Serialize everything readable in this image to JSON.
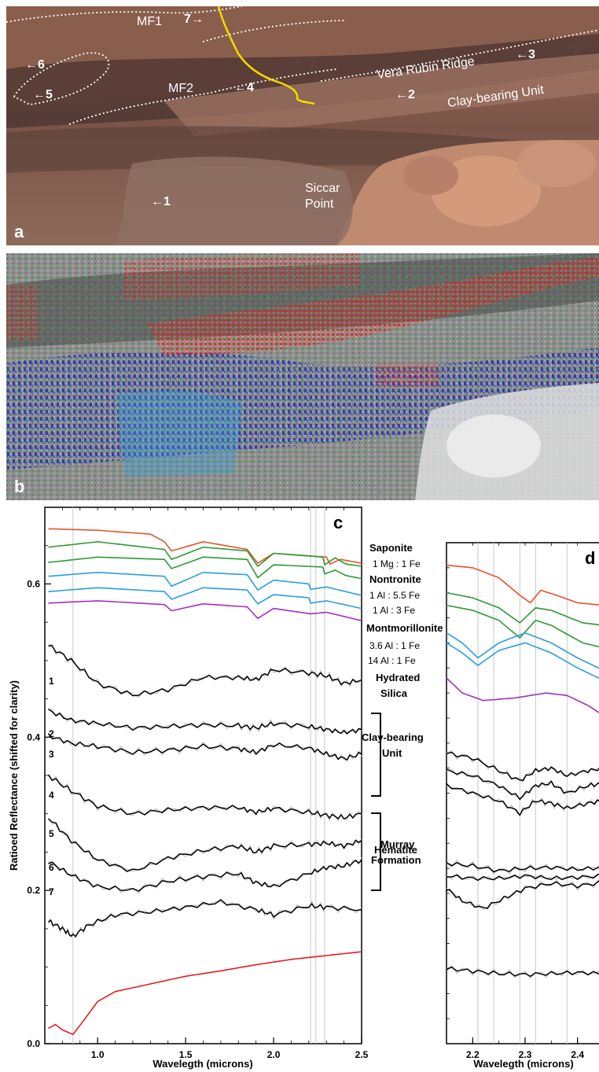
{
  "panel_a": {
    "letter": "a",
    "features": {
      "mf1": "MF1",
      "mf2": "MF2",
      "vera_rubin": "Vera Rubin Ridge",
      "clay_unit": "Clay-bearing Unit",
      "siccar_1": "Siccar",
      "siccar_2": "Point"
    },
    "markers": {
      "m1": "←1",
      "m2": "←2",
      "m3": "←3",
      "m4": "←4",
      "m5": "←5",
      "m6": "←6",
      "m7": "7→"
    }
  },
  "panel_b": {
    "letter": "b"
  },
  "colors": {
    "saponite": "#e8532a",
    "nontronite": "#2e9a35",
    "montmorillonite": "#2a9ee0",
    "silica": "#a030c8",
    "hematite": "#e02020",
    "measured": "#000000",
    "raw": "#b8b8b8",
    "ref_line": "#c8c8c8"
  },
  "chart_data": [
    {
      "type": "line",
      "panel": "c",
      "xlabel": "Wavelegth (microns)",
      "ylabel": "Ratioed Reflectance (shifted for clarity)",
      "xlim": [
        0.7,
        2.5
      ],
      "ylim": [
        0.0,
        0.7
      ],
      "xticks": [
        "1.0",
        "1.5",
        "2.0",
        "2.5"
      ],
      "yticks": [
        "0.0",
        "0.2",
        "0.4",
        "0.6"
      ],
      "reference_lines_um": [
        0.86,
        2.21,
        2.24,
        2.29
      ],
      "mineral_labels": {
        "saponite": "Saponite",
        "saponite_ratio": "1 Mg : 1 Fe",
        "nontronite": "Nontronite",
        "nontronite_ratio_1": "1 Al : 5.5 Fe",
        "nontronite_ratio_2": "1 Al : 3 Fe",
        "montmorillonite": "Montmorillonite",
        "montmorillonite_ratio_1": "3.6 Al : 1 Fe",
        "montmorillonite_ratio_2": "14 Al : 1 Fe",
        "silica_1": "Hydrated",
        "silica_2": "Silica",
        "hematite": "Hematite"
      },
      "groups": {
        "clay_1": "Clay-bearing",
        "clay_2": "Unit",
        "murray_1": "Murray",
        "murray_2": "Formation"
      },
      "spectrum_numbers": [
        "1",
        "2",
        "3",
        "4",
        "5",
        "6",
        "7"
      ],
      "series": [
        {
          "name": "Saponite",
          "color": "saponite",
          "x": [
            0.72,
            1.0,
            1.3,
            1.38,
            1.42,
            1.6,
            1.85,
            1.91,
            2.0,
            2.3,
            2.32,
            2.38,
            2.5
          ],
          "y": [
            0.672,
            0.67,
            0.665,
            0.655,
            0.643,
            0.655,
            0.645,
            0.627,
            0.64,
            0.635,
            0.626,
            0.632,
            0.627
          ]
        },
        {
          "name": "Nontronite 1 Al : 5.5 Fe",
          "color": "nontronite",
          "x": [
            0.72,
            1.0,
            1.38,
            1.42,
            1.6,
            1.85,
            1.91,
            2.0,
            2.28,
            2.29,
            2.35,
            2.41,
            2.5
          ],
          "y": [
            0.648,
            0.655,
            0.645,
            0.632,
            0.648,
            0.643,
            0.623,
            0.64,
            0.635,
            0.625,
            0.634,
            0.626,
            0.623
          ]
        },
        {
          "name": "Nontronite 1 Al : 3 Fe",
          "color": "nontronite",
          "x": [
            0.72,
            1.0,
            1.38,
            1.42,
            1.6,
            1.85,
            1.91,
            2.0,
            2.28,
            2.29,
            2.35,
            2.41,
            2.5
          ],
          "y": [
            0.628,
            0.635,
            0.632,
            0.62,
            0.635,
            0.632,
            0.608,
            0.625,
            0.622,
            0.613,
            0.618,
            0.611,
            0.607
          ]
        },
        {
          "name": "Montmorillonite 3.6 Al : 1 Fe",
          "color": "montmorillonite",
          "x": [
            0.72,
            1.0,
            1.38,
            1.42,
            1.6,
            1.85,
            1.91,
            2.0,
            2.2,
            2.21,
            2.3,
            2.5
          ],
          "y": [
            0.61,
            0.615,
            0.61,
            0.597,
            0.615,
            0.612,
            0.592,
            0.605,
            0.6,
            0.593,
            0.596,
            0.585
          ]
        },
        {
          "name": "Montmorillonite 14 Al : 1 Fe",
          "color": "montmorillonite",
          "x": [
            0.72,
            1.0,
            1.38,
            1.42,
            1.6,
            1.85,
            1.91,
            2.0,
            2.2,
            2.21,
            2.3,
            2.5
          ],
          "y": [
            0.59,
            0.595,
            0.59,
            0.58,
            0.595,
            0.592,
            0.574,
            0.586,
            0.582,
            0.575,
            0.578,
            0.568
          ]
        },
        {
          "name": "Hydrated Silica",
          "color": "silica",
          "x": [
            0.72,
            1.0,
            1.38,
            1.42,
            1.6,
            1.85,
            1.91,
            2.0,
            2.21,
            2.3,
            2.5
          ],
          "y": [
            0.575,
            0.578,
            0.573,
            0.565,
            0.574,
            0.57,
            0.555,
            0.568,
            0.561,
            0.563,
            0.552
          ]
        },
        {
          "name": "1",
          "color": "measured",
          "x": [
            0.72,
            0.85,
            1.0,
            1.2,
            1.4,
            1.6,
            1.8,
            1.9,
            2.0,
            2.2,
            2.3,
            2.4,
            2.5
          ],
          "y": [
            0.52,
            0.5,
            0.47,
            0.455,
            0.462,
            0.478,
            0.478,
            0.475,
            0.488,
            0.484,
            0.48,
            0.47,
            0.475
          ]
        },
        {
          "name": "2",
          "color": "measured",
          "x": [
            0.72,
            0.85,
            1.0,
            1.2,
            1.4,
            1.6,
            1.8,
            1.9,
            2.0,
            2.2,
            2.3,
            2.4,
            2.5
          ],
          "y": [
            0.435,
            0.422,
            0.418,
            0.412,
            0.414,
            0.416,
            0.415,
            0.412,
            0.418,
            0.414,
            0.41,
            0.406,
            0.41
          ]
        },
        {
          "name": "3",
          "color": "measured",
          "x": [
            0.72,
            0.85,
            1.0,
            1.2,
            1.4,
            1.6,
            1.8,
            1.9,
            2.0,
            2.2,
            2.3,
            2.4,
            2.5
          ],
          "y": [
            0.402,
            0.392,
            0.388,
            0.38,
            0.383,
            0.388,
            0.385,
            0.38,
            0.39,
            0.386,
            0.378,
            0.372,
            0.378
          ]
        },
        {
          "name": "4",
          "color": "measured",
          "x": [
            0.72,
            0.85,
            1.0,
            1.2,
            1.4,
            1.6,
            1.8,
            1.9,
            2.0,
            2.2,
            2.3,
            2.4,
            2.5
          ],
          "y": [
            0.35,
            0.33,
            0.31,
            0.3,
            0.305,
            0.308,
            0.308,
            0.302,
            0.307,
            0.302,
            0.298,
            0.295,
            0.3
          ]
        },
        {
          "name": "5",
          "color": "measured",
          "x": [
            0.72,
            0.85,
            1.0,
            1.2,
            1.4,
            1.6,
            1.8,
            1.9,
            2.0,
            2.2,
            2.3,
            2.4,
            2.5
          ],
          "y": [
            0.295,
            0.265,
            0.24,
            0.225,
            0.242,
            0.252,
            0.258,
            0.25,
            0.258,
            0.26,
            0.262,
            0.258,
            0.265
          ]
        },
        {
          "name": "6",
          "color": "measured",
          "x": [
            0.72,
            0.85,
            1.0,
            1.2,
            1.4,
            1.6,
            1.8,
            1.9,
            2.0,
            2.2,
            2.3,
            2.4,
            2.5
          ],
          "y": [
            0.238,
            0.22,
            0.205,
            0.2,
            0.212,
            0.218,
            0.222,
            0.21,
            0.205,
            0.222,
            0.23,
            0.232,
            0.24
          ]
        },
        {
          "name": "7",
          "color": "measured",
          "x": [
            0.72,
            0.8,
            0.86,
            0.95,
            1.1,
            1.3,
            1.5,
            1.7,
            1.9,
            2.0,
            2.2,
            2.3,
            2.5
          ],
          "y": [
            0.16,
            0.15,
            0.14,
            0.155,
            0.168,
            0.172,
            0.178,
            0.185,
            0.175,
            0.168,
            0.18,
            0.178,
            0.175
          ]
        },
        {
          "name": "Hematite",
          "color": "hematite",
          "x": [
            0.72,
            0.76,
            0.8,
            0.86,
            0.92,
            1.0,
            1.1,
            1.3,
            1.5,
            1.7,
            1.9,
            2.1,
            2.3,
            2.5
          ],
          "y": [
            0.02,
            0.025,
            0.018,
            0.012,
            0.03,
            0.055,
            0.068,
            0.078,
            0.088,
            0.095,
            0.103,
            0.11,
            0.115,
            0.12
          ]
        }
      ]
    },
    {
      "type": "line",
      "panel": "d",
      "xlabel": "Wavelegth (microns)",
      "xlim": [
        2.15,
        2.45
      ],
      "ylim": [
        0.0,
        1.0
      ],
      "xticks": [
        "2.2",
        "2.3",
        "2.4"
      ],
      "reference_lines_um": [
        2.21,
        2.24,
        2.29,
        2.32,
        2.38
      ],
      "series": [
        {
          "name": "Saponite",
          "color": "saponite",
          "x": [
            2.15,
            2.2,
            2.25,
            2.29,
            2.31,
            2.33,
            2.36,
            2.4,
            2.45
          ],
          "y": [
            0.955,
            0.95,
            0.93,
            0.895,
            0.88,
            0.905,
            0.895,
            0.88,
            0.875
          ]
        },
        {
          "name": "Nontronite 1 Al : 5.5 Fe",
          "color": "nontronite",
          "x": [
            2.15,
            2.2,
            2.25,
            2.29,
            2.32,
            2.35,
            2.41,
            2.45
          ],
          "y": [
            0.9,
            0.89,
            0.87,
            0.84,
            0.87,
            0.865,
            0.84,
            0.835
          ]
        },
        {
          "name": "Nontronite 1 Al : 3 Fe",
          "color": "nontronite",
          "x": [
            2.15,
            2.2,
            2.25,
            2.29,
            2.32,
            2.35,
            2.41,
            2.45
          ],
          "y": [
            0.875,
            0.865,
            0.845,
            0.81,
            0.845,
            0.835,
            0.8,
            0.79
          ]
        },
        {
          "name": "Montmorillonite 3.6 Al : 1 Fe",
          "color": "montmorillonite",
          "x": [
            2.15,
            2.18,
            2.21,
            2.25,
            2.3,
            2.35,
            2.4,
            2.45
          ],
          "y": [
            0.82,
            0.8,
            0.77,
            0.8,
            0.82,
            0.8,
            0.77,
            0.745
          ]
        },
        {
          "name": "Montmorillonite 14 Al : 1 Fe",
          "color": "montmorillonite",
          "x": [
            2.15,
            2.18,
            2.21,
            2.25,
            2.3,
            2.35,
            2.4,
            2.45
          ],
          "y": [
            0.8,
            0.78,
            0.755,
            0.785,
            0.8,
            0.78,
            0.75,
            0.725
          ]
        },
        {
          "name": "Hydrated Silica",
          "color": "silica",
          "x": [
            2.15,
            2.18,
            2.22,
            2.28,
            2.34,
            2.38,
            2.42,
            2.45
          ],
          "y": [
            0.73,
            0.7,
            0.685,
            0.69,
            0.7,
            0.695,
            0.675,
            0.655
          ]
        },
        {
          "name": "1",
          "color": "measured",
          "x": [
            2.15,
            2.2,
            2.25,
            2.29,
            2.32,
            2.35,
            2.38,
            2.42,
            2.45
          ],
          "y": [
            0.58,
            0.57,
            0.545,
            0.525,
            0.545,
            0.55,
            0.535,
            0.545,
            0.55
          ]
        },
        {
          "name": "2",
          "color": "measured",
          "x": [
            2.15,
            2.2,
            2.25,
            2.29,
            2.32,
            2.35,
            2.38,
            2.42,
            2.45
          ],
          "y": [
            0.545,
            0.535,
            0.515,
            0.49,
            0.515,
            0.52,
            0.5,
            0.515,
            0.52
          ]
        },
        {
          "name": "3",
          "color": "measured",
          "x": [
            2.15,
            2.2,
            2.25,
            2.29,
            2.32,
            2.35,
            2.38,
            2.42,
            2.45
          ],
          "y": [
            0.515,
            0.5,
            0.485,
            0.46,
            0.485,
            0.48,
            0.47,
            0.48,
            0.485
          ]
        },
        {
          "name": "4",
          "color": "measured",
          "x": [
            2.15,
            2.2,
            2.25,
            2.3,
            2.35,
            2.4,
            2.45
          ],
          "y": [
            0.36,
            0.355,
            0.345,
            0.35,
            0.352,
            0.348,
            0.352
          ]
        },
        {
          "name": "5",
          "color": "measured",
          "x": [
            2.15,
            2.2,
            2.25,
            2.3,
            2.35,
            2.4,
            2.45
          ],
          "y": [
            0.335,
            0.33,
            0.33,
            0.335,
            0.33,
            0.332,
            0.335
          ]
        },
        {
          "name": "6",
          "color": "measured",
          "x": [
            2.15,
            2.18,
            2.22,
            2.26,
            2.3,
            2.35,
            2.4,
            2.45
          ],
          "y": [
            0.31,
            0.285,
            0.27,
            0.29,
            0.31,
            0.32,
            0.315,
            0.322
          ]
        },
        {
          "name": "7",
          "color": "measured",
          "x": [
            2.15,
            2.2,
            2.25,
            2.3,
            2.35,
            2.4,
            2.45
          ],
          "y": [
            0.15,
            0.145,
            0.14,
            0.138,
            0.14,
            0.142,
            0.14
          ]
        }
      ]
    }
  ]
}
